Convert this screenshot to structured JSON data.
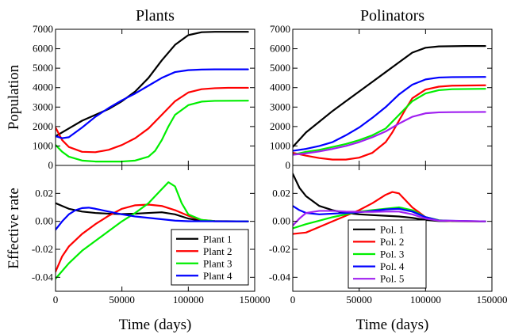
{
  "colors": {
    "black": "#000000",
    "red": "#ff0000",
    "green": "#00ee00",
    "blue": "#0000ff",
    "purple": "#a020f0"
  },
  "chart_data": [
    {
      "id": "plants-population",
      "type": "line",
      "title": "Plants",
      "xlabel": "",
      "ylabel": "Population",
      "xlim": [
        0,
        150000
      ],
      "ylim": [
        0,
        7000
      ],
      "yticks": [
        0,
        1000,
        2000,
        3000,
        4000,
        5000,
        6000,
        7000
      ],
      "ytick_labels": [
        "0",
        "1000",
        "2000",
        "3000",
        "4000",
        "5000",
        "6000",
        "7000"
      ],
      "xticks": [
        0,
        50000,
        100000,
        150000
      ],
      "xtick_labels": [],
      "series": [
        {
          "color": "#000000",
          "x": [
            0,
            10000,
            20000,
            30000,
            40000,
            50000,
            60000,
            70000,
            80000,
            90000,
            100000,
            110000,
            120000,
            130000,
            145000
          ],
          "y": [
            1500,
            1900,
            2300,
            2600,
            2900,
            3300,
            3800,
            4500,
            5400,
            6200,
            6700,
            6850,
            6870,
            6870,
            6870
          ]
        },
        {
          "color": "#ff0000",
          "x": [
            0,
            5000,
            10000,
            20000,
            30000,
            40000,
            50000,
            60000,
            70000,
            80000,
            90000,
            100000,
            110000,
            120000,
            130000,
            145000
          ],
          "y": [
            1950,
            1300,
            950,
            700,
            680,
            800,
            1050,
            1400,
            1900,
            2600,
            3300,
            3750,
            3920,
            3970,
            3990,
            3990
          ]
        },
        {
          "color": "#00ee00",
          "x": [
            0,
            5000,
            10000,
            20000,
            30000,
            40000,
            50000,
            60000,
            70000,
            75000,
            80000,
            85000,
            90000,
            100000,
            110000,
            120000,
            145000
          ],
          "y": [
            1050,
            700,
            450,
            250,
            200,
            200,
            200,
            250,
            450,
            750,
            1300,
            2000,
            2600,
            3100,
            3280,
            3320,
            3330
          ]
        },
        {
          "color": "#0000ff",
          "x": [
            0,
            5000,
            10000,
            20000,
            30000,
            40000,
            50000,
            60000,
            70000,
            80000,
            90000,
            100000,
            110000,
            120000,
            145000
          ],
          "y": [
            1500,
            1400,
            1450,
            1950,
            2500,
            2950,
            3350,
            3700,
            4100,
            4500,
            4800,
            4900,
            4930,
            4940,
            4940
          ]
        }
      ]
    },
    {
      "id": "pollinators-population",
      "type": "line",
      "title": "Polinators",
      "xlabel": "",
      "ylabel": "",
      "xlim": [
        0,
        150000
      ],
      "ylim": [
        0,
        7000
      ],
      "yticks": [
        0,
        1000,
        2000,
        3000,
        4000,
        5000,
        6000,
        7000
      ],
      "ytick_labels": [
        "0",
        "1000",
        "2000",
        "3000",
        "4000",
        "5000",
        "6000",
        "7000"
      ],
      "xticks": [
        0,
        50000,
        100000,
        150000
      ],
      "xtick_labels": [],
      "series": [
        {
          "color": "#000000",
          "x": [
            0,
            10000,
            20000,
            30000,
            40000,
            50000,
            60000,
            70000,
            80000,
            90000,
            100000,
            110000,
            120000,
            130000,
            145000
          ],
          "y": [
            950,
            1700,
            2250,
            2800,
            3300,
            3800,
            4300,
            4800,
            5300,
            5800,
            6050,
            6120,
            6130,
            6140,
            6140
          ]
        },
        {
          "color": "#ff0000",
          "x": [
            0,
            10000,
            20000,
            30000,
            40000,
            50000,
            60000,
            70000,
            75000,
            80000,
            85000,
            90000,
            100000,
            110000,
            120000,
            145000
          ],
          "y": [
            650,
            500,
            380,
            300,
            300,
            400,
            650,
            1200,
            1700,
            2300,
            2900,
            3450,
            3900,
            4050,
            4100,
            4120
          ]
        },
        {
          "color": "#00ee00",
          "x": [
            0,
            10000,
            20000,
            30000,
            40000,
            50000,
            60000,
            70000,
            80000,
            90000,
            100000,
            110000,
            120000,
            145000
          ],
          "y": [
            550,
            700,
            800,
            950,
            1100,
            1300,
            1550,
            1900,
            2600,
            3300,
            3700,
            3870,
            3920,
            3940
          ]
        },
        {
          "color": "#0000ff",
          "x": [
            0,
            10000,
            20000,
            30000,
            40000,
            50000,
            60000,
            70000,
            80000,
            90000,
            100000,
            110000,
            120000,
            145000
          ],
          "y": [
            750,
            850,
            1000,
            1200,
            1550,
            1950,
            2450,
            3000,
            3650,
            4150,
            4420,
            4520,
            4540,
            4550
          ]
        },
        {
          "color": "#a020f0",
          "x": [
            0,
            10000,
            20000,
            30000,
            40000,
            50000,
            60000,
            70000,
            80000,
            90000,
            100000,
            110000,
            120000,
            145000
          ],
          "y": [
            550,
            620,
            720,
            850,
            1000,
            1200,
            1450,
            1750,
            2150,
            2500,
            2680,
            2730,
            2740,
            2750
          ]
        }
      ]
    },
    {
      "id": "plants-rate",
      "type": "line",
      "title": "",
      "xlabel": "Time (days)",
      "ylabel": "Effective rate",
      "xlim": [
        0,
        150000
      ],
      "ylim": [
        -0.05,
        0.04
      ],
      "yticks": [
        -0.04,
        -0.02,
        0.0,
        0.02
      ],
      "ytick_labels": [
        "-0.04",
        "-0.02",
        "0.00",
        "0.02"
      ],
      "xticks": [
        0,
        50000,
        100000,
        150000
      ],
      "xtick_labels": [
        "0",
        "50000",
        "100000",
        "150000"
      ],
      "legend": {
        "location": "lower-right"
      },
      "series": [
        {
          "name": "Plant 1",
          "color": "#000000",
          "x": [
            0,
            5000,
            10000,
            20000,
            30000,
            40000,
            50000,
            60000,
            70000,
            80000,
            90000,
            100000,
            110000,
            120000,
            145000
          ],
          "y": [
            0.013,
            0.011,
            0.009,
            0.007,
            0.006,
            0.0055,
            0.0052,
            0.0055,
            0.006,
            0.0065,
            0.005,
            0.002,
            0.0005,
            0.0001,
            0.0
          ]
        },
        {
          "name": "Plant 2",
          "color": "#ff0000",
          "x": [
            0,
            5000,
            10000,
            20000,
            30000,
            40000,
            50000,
            60000,
            70000,
            80000,
            90000,
            100000,
            110000,
            120000,
            145000
          ],
          "y": [
            -0.036,
            -0.025,
            -0.018,
            -0.009,
            -0.002,
            0.004,
            0.009,
            0.0115,
            0.012,
            0.011,
            0.008,
            0.004,
            0.001,
            0.0002,
            0.0
          ]
        },
        {
          "name": "Plant 3",
          "color": "#00ee00",
          "x": [
            0,
            10000,
            20000,
            30000,
            40000,
            50000,
            60000,
            70000,
            80000,
            85000,
            90000,
            95000,
            100000,
            110000,
            120000,
            145000
          ],
          "y": [
            -0.041,
            -0.03,
            -0.021,
            -0.014,
            -0.007,
            0.0,
            0.006,
            0.013,
            0.023,
            0.028,
            0.025,
            0.013,
            0.005,
            0.001,
            0.0002,
            0.0
          ]
        },
        {
          "name": "Plant 4",
          "color": "#0000ff",
          "x": [
            0,
            5000,
            10000,
            15000,
            20000,
            25000,
            30000,
            40000,
            50000,
            60000,
            70000,
            80000,
            90000,
            100000,
            145000
          ],
          "y": [
            -0.006,
            0.0,
            0.005,
            0.008,
            0.0095,
            0.0098,
            0.009,
            0.007,
            0.005,
            0.0035,
            0.0025,
            0.0015,
            0.0005,
            0.0001,
            0.0
          ]
        }
      ]
    },
    {
      "id": "pollinators-rate",
      "type": "line",
      "title": "",
      "xlabel": "Time (days)",
      "ylabel": "",
      "xlim": [
        0,
        150000
      ],
      "ylim": [
        -0.05,
        0.04
      ],
      "yticks": [
        -0.04,
        -0.02,
        0.0,
        0.02
      ],
      "ytick_labels": [
        "-0.04",
        "-0.02",
        "0.00",
        "0.02"
      ],
      "xticks": [
        0,
        50000,
        100000,
        150000
      ],
      "xtick_labels": [
        "0",
        "50000",
        "100000",
        "150000"
      ],
      "legend": {
        "location": "lower-center"
      },
      "series": [
        {
          "name": "Pol. 1",
          "color": "#000000",
          "x": [
            0,
            5000,
            10000,
            20000,
            30000,
            40000,
            50000,
            60000,
            70000,
            80000,
            90000,
            100000,
            110000,
            145000
          ],
          "y": [
            0.034,
            0.024,
            0.018,
            0.011,
            0.008,
            0.006,
            0.005,
            0.0045,
            0.004,
            0.0035,
            0.0025,
            0.001,
            0.0002,
            0.0
          ]
        },
        {
          "name": "Pol. 2",
          "color": "#ff0000",
          "x": [
            0,
            10000,
            20000,
            30000,
            40000,
            50000,
            60000,
            70000,
            75000,
            80000,
            85000,
            90000,
            100000,
            110000,
            120000,
            145000
          ],
          "y": [
            -0.009,
            -0.008,
            -0.004,
            0.0,
            0.004,
            0.008,
            0.013,
            0.019,
            0.021,
            0.02,
            0.015,
            0.01,
            0.003,
            0.0007,
            0.0001,
            0.0
          ]
        },
        {
          "name": "Pol. 3",
          "color": "#00ee00",
          "x": [
            0,
            10000,
            20000,
            30000,
            40000,
            50000,
            60000,
            70000,
            80000,
            90000,
            100000,
            110000,
            120000,
            145000
          ],
          "y": [
            -0.005,
            -0.002,
            0.0005,
            0.003,
            0.005,
            0.007,
            0.008,
            0.009,
            0.01,
            0.008,
            0.003,
            0.0008,
            0.0002,
            0.0
          ]
        },
        {
          "name": "Pol. 4",
          "color": "#0000ff",
          "x": [
            0,
            5000,
            10000,
            20000,
            30000,
            40000,
            50000,
            60000,
            70000,
            80000,
            90000,
            100000,
            110000,
            145000
          ],
          "y": [
            0.011,
            0.008,
            0.006,
            0.005,
            0.0055,
            0.006,
            0.0065,
            0.0075,
            0.0085,
            0.009,
            0.007,
            0.003,
            0.0006,
            0.0
          ]
        },
        {
          "name": "Pol. 5",
          "color": "#a020f0",
          "x": [
            0,
            5000,
            10000,
            20000,
            30000,
            40000,
            50000,
            60000,
            70000,
            80000,
            90000,
            100000,
            110000,
            145000
          ],
          "y": [
            -0.003,
            0.002,
            0.006,
            0.0075,
            0.0075,
            0.007,
            0.0068,
            0.0068,
            0.007,
            0.007,
            0.005,
            0.002,
            0.0005,
            0.0
          ]
        }
      ]
    }
  ]
}
